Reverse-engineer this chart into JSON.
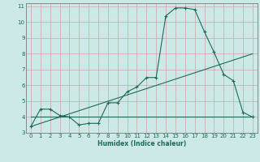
{
  "title": "",
  "xlabel": "Humidex (Indice chaleur)",
  "xlim": [
    -0.5,
    23.5
  ],
  "ylim": [
    3,
    11.2
  ],
  "yticks": [
    3,
    4,
    5,
    6,
    7,
    8,
    9,
    10,
    11
  ],
  "xticks": [
    0,
    1,
    2,
    3,
    4,
    5,
    6,
    7,
    8,
    9,
    10,
    11,
    12,
    13,
    14,
    15,
    16,
    17,
    18,
    19,
    20,
    21,
    22,
    23
  ],
  "bg_color": "#cce9e8",
  "grid_color": "#d4a0a0",
  "line_color": "#1a6b5a",
  "line1_x": [
    0,
    1,
    2,
    3,
    4,
    5,
    6,
    7,
    8,
    9,
    10,
    11,
    12,
    13,
    14,
    15,
    16,
    17,
    18,
    19,
    20,
    21,
    22,
    23
  ],
  "line1_y": [
    3.4,
    4.5,
    4.5,
    4.1,
    4.0,
    3.5,
    3.6,
    3.6,
    4.9,
    4.9,
    5.6,
    5.9,
    6.5,
    6.5,
    10.4,
    10.9,
    10.9,
    10.8,
    9.4,
    8.1,
    6.7,
    6.3,
    4.3,
    4.0
  ],
  "line2_x": [
    0,
    23
  ],
  "line2_y": [
    3.4,
    8.0
  ],
  "line3_x": [
    0,
    23
  ],
  "line3_y": [
    4.0,
    4.0
  ]
}
